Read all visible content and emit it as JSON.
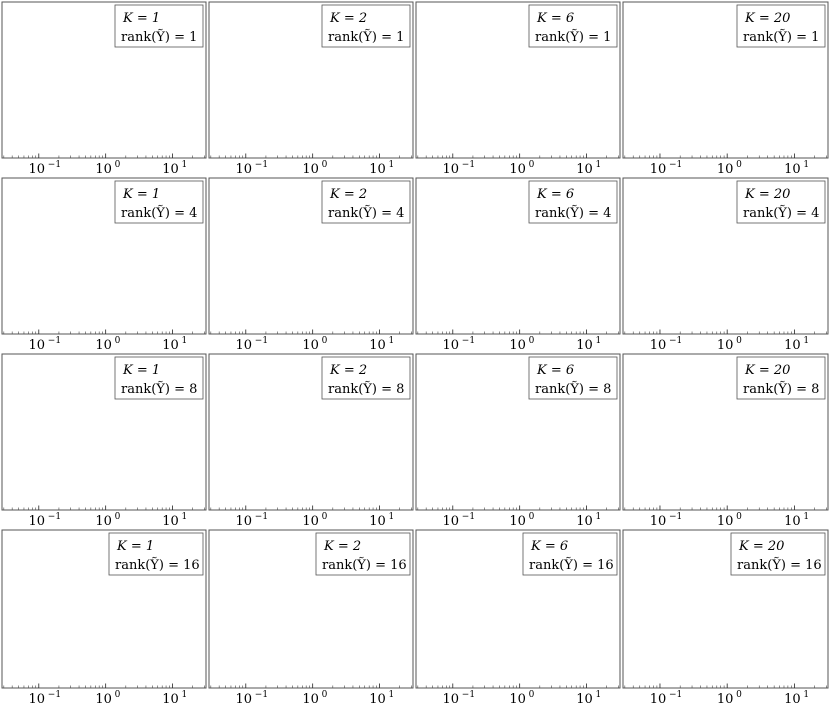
{
  "chart_data": {
    "type": "bar",
    "layout": {
      "rows": 4,
      "cols": 4
    },
    "x_scale": "log",
    "x_ticks": [
      {
        "value": 0.1,
        "base": "10",
        "exp": "−1"
      },
      {
        "value": 1,
        "base": "10",
        "exp": "0"
      },
      {
        "value": 10,
        "base": "10",
        "exp": "1"
      }
    ],
    "colors": {
      "bar_fill": "#4f4ff0",
      "bar_stroke": "#20208a",
      "curve": "#000000",
      "frame": "#555555"
    },
    "legend_placement": "top-right",
    "panels": [
      {
        "K": "1",
        "rank": "1",
        "legend": [
          "K = 1",
          "rank(Ỹ) = 1"
        ]
      },
      {
        "K": "2",
        "rank": "1",
        "legend": [
          "K = 2",
          "rank(Ỹ) = 1"
        ]
      },
      {
        "K": "6",
        "rank": "1",
        "legend": [
          "K = 6",
          "rank(Ỹ) = 1"
        ]
      },
      {
        "K": "20",
        "rank": "1",
        "legend": [
          "K = 20",
          "rank(Ỹ) = 1"
        ]
      },
      {
        "K": "1",
        "rank": "4",
        "legend": [
          "K = 1",
          "rank(Ỹ) = 4"
        ]
      },
      {
        "K": "2",
        "rank": "4",
        "legend": [
          "K = 2",
          "rank(Ỹ) = 4"
        ]
      },
      {
        "K": "6",
        "rank": "4",
        "legend": [
          "K = 6",
          "rank(Ỹ) = 4"
        ]
      },
      {
        "K": "20",
        "rank": "4",
        "legend": [
          "K = 20",
          "rank(Ỹ) = 4"
        ]
      },
      {
        "K": "1",
        "rank": "8",
        "legend": [
          "K = 1",
          "rank(Ỹ) = 8"
        ]
      },
      {
        "K": "2",
        "rank": "8",
        "legend": [
          "K = 2",
          "rank(Ỹ) = 8"
        ]
      },
      {
        "K": "6",
        "rank": "8",
        "legend": [
          "K = 6",
          "rank(Ỹ) = 8"
        ]
      },
      {
        "K": "20",
        "rank": "8",
        "legend": [
          "K = 20",
          "rank(Ỹ) = 8"
        ]
      },
      {
        "K": "1",
        "rank": "16",
        "legend": [
          "K = 1",
          "rank(Ỹ) = 16"
        ]
      },
      {
        "K": "2",
        "rank": "16",
        "legend": [
          "K = 2",
          "rank(Ỹ) = 16"
        ]
      },
      {
        "K": "6",
        "rank": "16",
        "legend": [
          "K = 6",
          "rank(Ỹ) = 16"
        ]
      },
      {
        "K": "20",
        "rank": "16",
        "legend": [
          "K = 20",
          "rank(Ỹ) = 16"
        ]
      }
    ]
  }
}
